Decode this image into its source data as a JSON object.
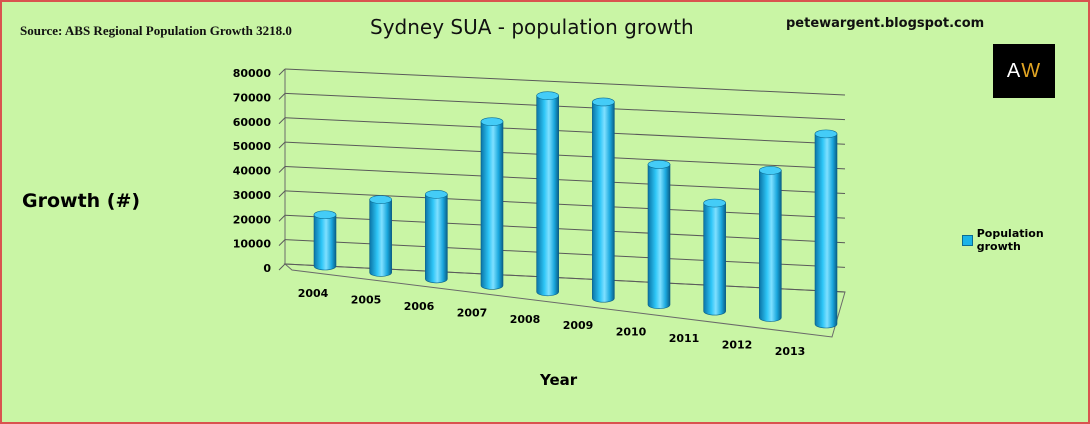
{
  "source": "Source: ABS Regional Population Growth 3218.0",
  "blog": "petewargent.blogspot.com",
  "logo": {
    "left": "A",
    "right": "W"
  },
  "colors": {
    "background": "#c9f5a5",
    "border": "#d9534f",
    "bar": "#1ab3e8",
    "bar_dark": "#0a6c94",
    "logo_accent": "#e2a523"
  },
  "chart_data": {
    "type": "bar",
    "style": "3d-cylinder",
    "title": "Sydney SUA - population growth",
    "ylabel": "Growth (#)",
    "xlabel": "Year",
    "categories": [
      "2004",
      "2005",
      "2006",
      "2007",
      "2008",
      "2009",
      "2010",
      "2011",
      "2012",
      "2013"
    ],
    "series": [
      {
        "name": "Population growth",
        "values": [
          20000,
          28000,
          32000,
          61000,
          72000,
          71000,
          50000,
          38000,
          51000,
          65000
        ]
      }
    ],
    "ylim": [
      0,
      80000
    ],
    "yticks": [
      "0",
      "10000",
      "20000",
      "30000",
      "40000",
      "50000",
      "60000",
      "70000",
      "80000"
    ],
    "grid": true,
    "legend": "right"
  }
}
